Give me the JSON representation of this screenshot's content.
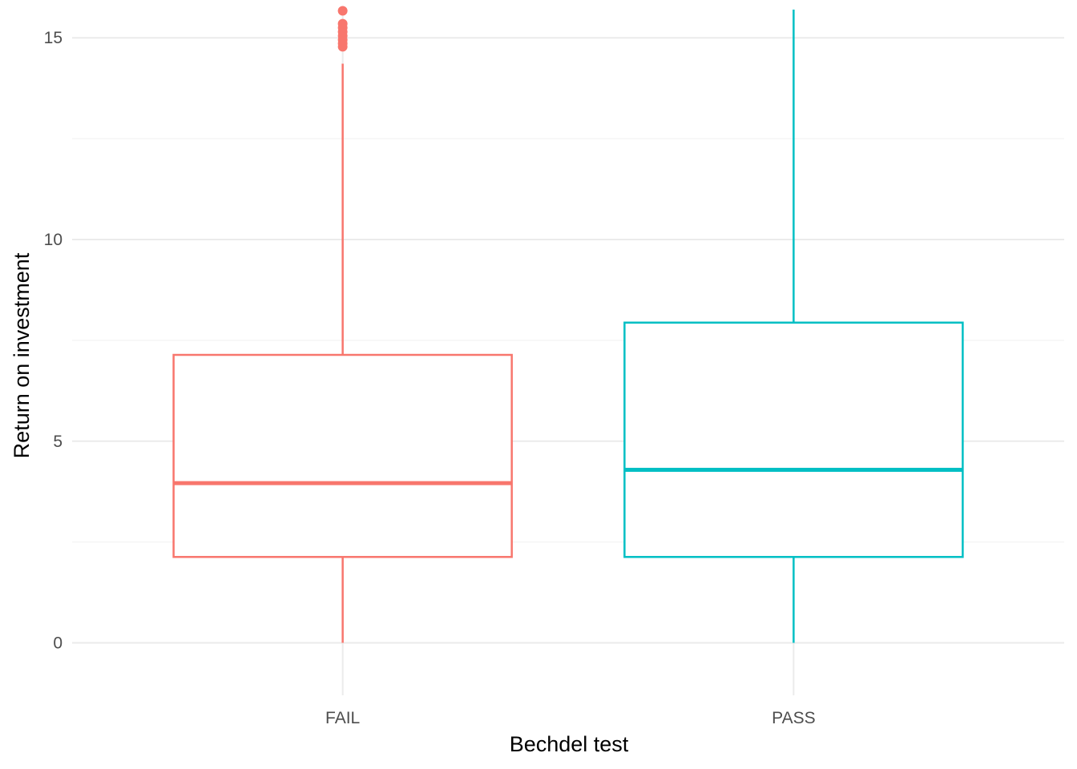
{
  "chart_data": {
    "type": "boxplot",
    "title": "",
    "xlabel": "Bechdel test",
    "ylabel": "Return on investment",
    "categories": [
      "FAIL",
      "PASS"
    ],
    "ylim": [
      -1.3,
      15.7
    ],
    "yticks": [
      0,
      5,
      10,
      15
    ],
    "grid": true,
    "legend": "none",
    "series": [
      {
        "category": "FAIL",
        "color": "#F8766D",
        "whisker_low": 0,
        "q1": 2.13,
        "median": 3.96,
        "q3": 7.14,
        "whisker_high": 14.36,
        "outliers": [
          14.78,
          14.86,
          14.95,
          15.05,
          15.15,
          15.25,
          15.35,
          15.67
        ]
      },
      {
        "category": "PASS",
        "color": "#00BFC4",
        "whisker_low": 0,
        "q1": 2.13,
        "median": 4.29,
        "q3": 7.94,
        "whisker_high": 15.7,
        "outliers": []
      }
    ]
  }
}
